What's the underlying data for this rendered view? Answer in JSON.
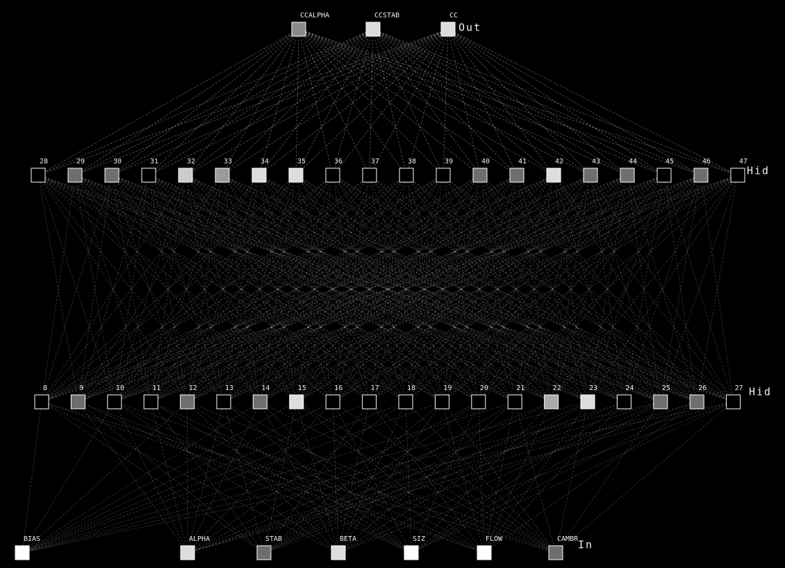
{
  "output": {
    "label": "Out",
    "nodes": [
      {
        "label": "CCALPHA",
        "color": "#8a8a8a"
      },
      {
        "label": "CCSTAB",
        "color": "#dddddd"
      },
      {
        "label": "CC",
        "color": "#dddddd"
      }
    ]
  },
  "hidden2": {
    "label": "Hid",
    "nodes": [
      {
        "label": "28",
        "color": "none"
      },
      {
        "label": "29",
        "color": "#6e6e6e"
      },
      {
        "label": "30",
        "color": "#6e6e6e"
      },
      {
        "label": "31",
        "color": "none"
      },
      {
        "label": "32",
        "color": "#cccccc"
      },
      {
        "label": "33",
        "color": "#9a9a9a"
      },
      {
        "label": "34",
        "color": "#dddddd"
      },
      {
        "label": "35",
        "color": "#dddddd"
      },
      {
        "label": "36",
        "color": "none"
      },
      {
        "label": "37",
        "color": "none"
      },
      {
        "label": "38",
        "color": "none"
      },
      {
        "label": "39",
        "color": "none"
      },
      {
        "label": "40",
        "color": "#6e6e6e"
      },
      {
        "label": "41",
        "color": "#6e6e6e"
      },
      {
        "label": "42",
        "color": "#dddddd"
      },
      {
        "label": "43",
        "color": "#6e6e6e"
      },
      {
        "label": "44",
        "color": "#6e6e6e"
      },
      {
        "label": "45",
        "color": "none"
      },
      {
        "label": "46",
        "color": "#6e6e6e"
      },
      {
        "label": "47",
        "color": "none"
      }
    ]
  },
  "hidden1": {
    "label": "Hid",
    "nodes": [
      {
        "label": "8",
        "color": "none"
      },
      {
        "label": "9",
        "color": "#6e6e6e"
      },
      {
        "label": "10",
        "color": "none"
      },
      {
        "label": "11",
        "color": "none"
      },
      {
        "label": "12",
        "color": "#6e6e6e"
      },
      {
        "label": "13",
        "color": "none"
      },
      {
        "label": "14",
        "color": "#6e6e6e"
      },
      {
        "label": "15",
        "color": "#dddddd"
      },
      {
        "label": "16",
        "color": "none"
      },
      {
        "label": "17",
        "color": "none"
      },
      {
        "label": "18",
        "color": "none"
      },
      {
        "label": "19",
        "color": "none"
      },
      {
        "label": "20",
        "color": "none"
      },
      {
        "label": "21",
        "color": "none"
      },
      {
        "label": "22",
        "color": "#aaaaaa"
      },
      {
        "label": "23",
        "color": "#dddddd"
      },
      {
        "label": "24",
        "color": "none"
      },
      {
        "label": "25",
        "color": "#6e6e6e"
      },
      {
        "label": "26",
        "color": "#6e6e6e"
      },
      {
        "label": "27",
        "color": "none"
      }
    ]
  },
  "input": {
    "label": "In",
    "nodes": [
      {
        "label": "BIAS",
        "color": "#ffffff"
      },
      {
        "label": "ALPHA",
        "color": "#dddddd"
      },
      {
        "label": "STAB",
        "color": "#6e6e6e"
      },
      {
        "label": "BETA",
        "color": "#dddddd"
      },
      {
        "label": "SIZ",
        "color": "#ffffff"
      },
      {
        "label": "FLOW",
        "color": "#ffffff"
      },
      {
        "label": "CAMBR",
        "color": "#6e6e6e"
      }
    ]
  }
}
